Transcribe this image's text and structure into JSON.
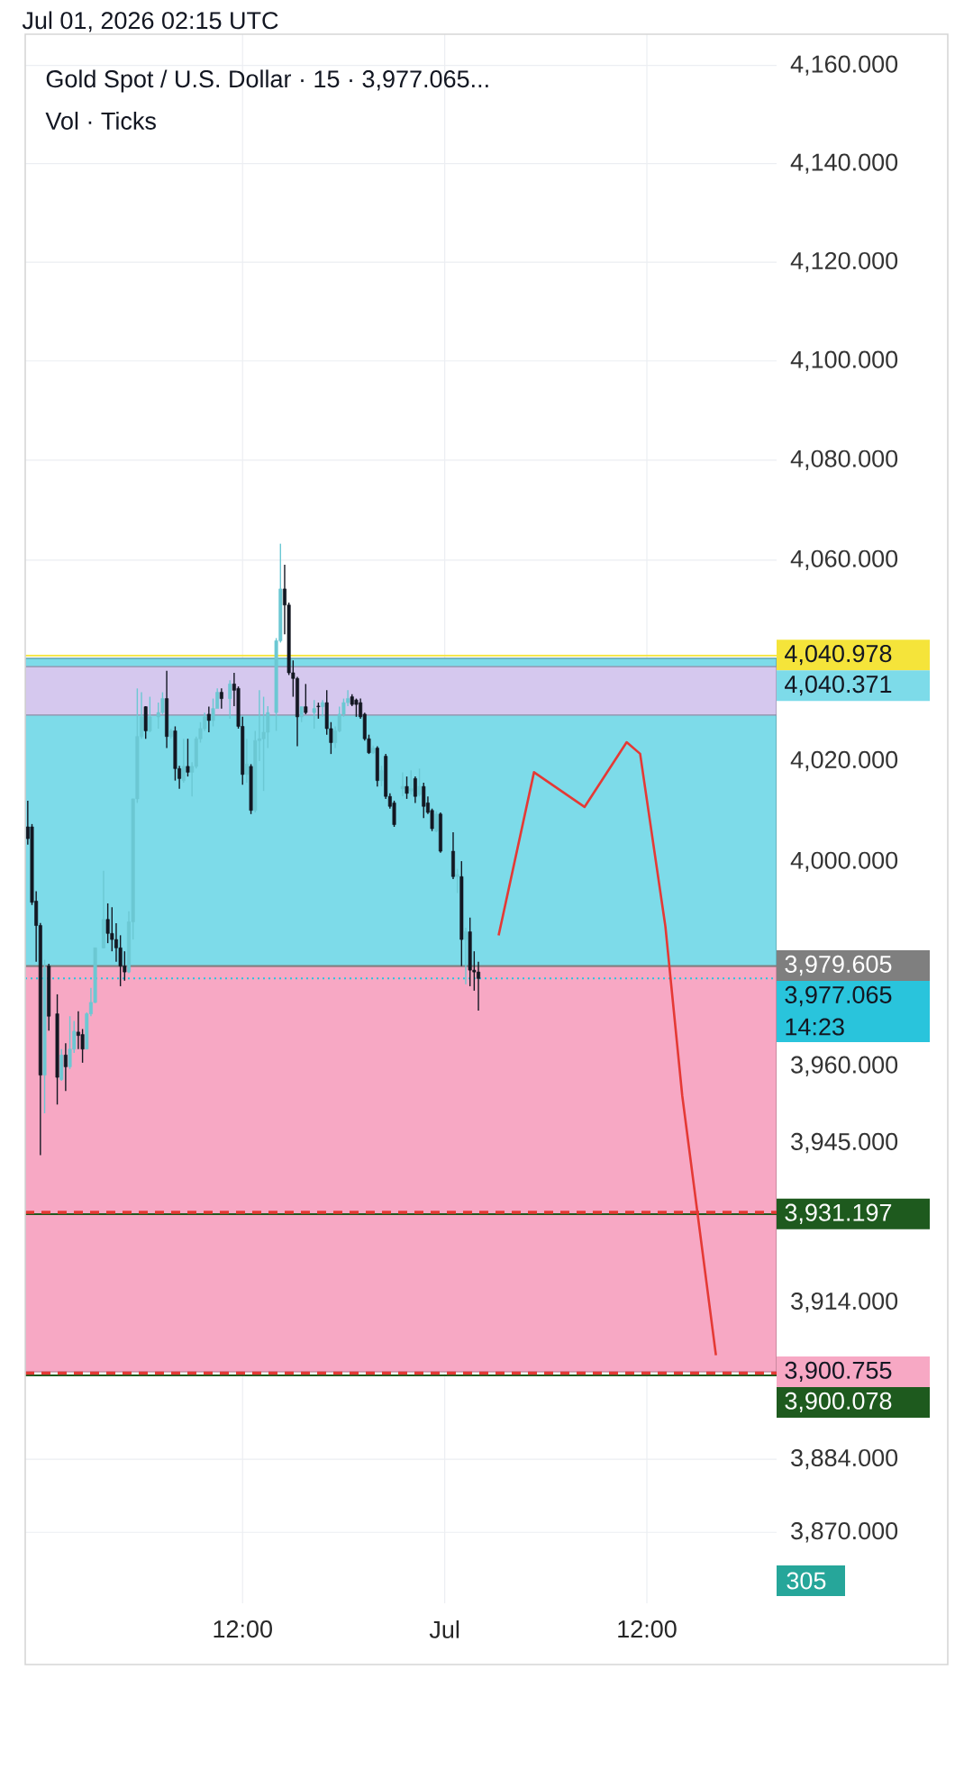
{
  "chart_data": {
    "type": "candlestick",
    "title": "Gold Spot / U.S. Dollar · 15 · 3,977.065...",
    "subtitle": "Vol · Ticks",
    "annotations": [
      "Jul 01, 2026 02:15 UTC",
      "14:23",
      "305"
    ],
    "xlim": [
      "2026-06-29T23:06",
      "2026-07-01T19:42"
    ],
    "ylim": [
      3856.5,
      4166.5
    ],
    "log": true,
    "grid": true,
    "xticks": [
      {
        "value": "2026-06-30T12:00",
        "label": "12:00"
      },
      {
        "value": "2026-07-01T00:00",
        "label": "Jul"
      },
      {
        "value": "2026-07-01T12:00",
        "label": "12:00"
      }
    ],
    "yticks": [
      {
        "value": 4160,
        "label": "4,160.000"
      },
      {
        "value": 4140,
        "label": "4,140.000"
      },
      {
        "value": 4120,
        "label": "4,120.000"
      },
      {
        "value": 4100,
        "label": "4,100.000"
      },
      {
        "value": 4080,
        "label": "4,080.000"
      },
      {
        "value": 4060,
        "label": "4,060.000"
      },
      {
        "value": 4040,
        "label": null
      },
      {
        "value": 4020,
        "label": "4,020.000"
      },
      {
        "value": 4000,
        "label": "4,000.000"
      },
      {
        "value": 3980,
        "label": null
      },
      {
        "value": 3960,
        "label": "3,960.000"
      },
      {
        "value": 3945,
        "label": "3,945.000"
      },
      {
        "value": 3914,
        "label": "3,914.000"
      },
      {
        "value": 3884,
        "label": "3,884.000"
      },
      {
        "value": 3870,
        "label": "3,870.000"
      }
    ],
    "x": [
      "2026-06-29T23:15",
      "2026-06-29T23:30",
      "2026-06-29T23:45",
      "2026-06-30T00:00",
      "2026-06-30T00:15",
      "2026-06-30T00:30",
      "2026-06-30T01:00",
      "2026-06-30T01:15",
      "2026-06-30T01:30",
      "2026-06-30T01:45",
      "2026-06-30T02:00",
      "2026-06-30T02:15",
      "2026-06-30T02:30",
      "2026-06-30T02:45",
      "2026-06-30T03:00",
      "2026-06-30T03:15",
      "2026-06-30T03:45",
      "2026-06-30T04:00",
      "2026-06-30T04:15",
      "2026-06-30T04:30",
      "2026-06-30T04:45",
      "2026-06-30T05:00",
      "2026-06-30T05:15",
      "2026-06-30T05:30",
      "2026-06-30T05:45",
      "2026-06-30T06:00",
      "2026-06-30T06:15",
      "2026-06-30T06:30",
      "2026-06-30T07:00",
      "2026-06-30T07:15",
      "2026-06-30T07:30",
      "2026-06-30T07:45",
      "2026-06-30T08:00",
      "2026-06-30T08:15",
      "2026-06-30T08:30",
      "2026-06-30T08:45",
      "2026-06-30T09:00",
      "2026-06-30T09:15",
      "2026-06-30T09:30",
      "2026-06-30T09:45",
      "2026-06-30T10:00",
      "2026-06-30T10:15",
      "2026-06-30T10:30",
      "2026-06-30T10:45",
      "2026-06-30T11:15",
      "2026-06-30T11:30",
      "2026-06-30T11:45",
      "2026-06-30T12:00",
      "2026-06-30T12:15",
      "2026-06-30T12:30",
      "2026-06-30T12:45",
      "2026-06-30T13:00",
      "2026-06-30T13:15",
      "2026-06-30T13:30",
      "2026-06-30T14:00",
      "2026-06-30T14:15",
      "2026-06-30T14:30",
      "2026-06-30T14:45",
      "2026-06-30T15:00",
      "2026-06-30T15:15",
      "2026-06-30T15:30",
      "2026-06-30T15:45",
      "2026-06-30T16:15",
      "2026-06-30T16:30",
      "2026-06-30T16:45",
      "2026-06-30T17:00",
      "2026-06-30T17:15",
      "2026-06-30T17:30",
      "2026-06-30T17:45",
      "2026-06-30T18:00",
      "2026-06-30T18:15",
      "2026-06-30T18:30",
      "2026-06-30T18:45",
      "2026-06-30T19:00",
      "2026-06-30T19:15",
      "2026-06-30T19:30",
      "2026-06-30T19:45",
      "2026-06-30T20:00",
      "2026-06-30T20:15",
      "2026-06-30T20:30",
      "2026-06-30T20:45",
      "2026-06-30T21:00",
      "2026-06-30T21:30",
      "2026-06-30T21:45",
      "2026-06-30T22:00",
      "2026-06-30T22:15",
      "2026-06-30T22:30",
      "2026-06-30T22:45",
      "2026-06-30T23:00",
      "2026-06-30T23:15",
      "2026-06-30T23:30",
      "2026-06-30T23:45",
      "2026-07-01T00:30",
      "2026-07-01T00:45",
      "2026-07-01T01:00",
      "2026-07-01T01:15",
      "2026-07-01T01:30",
      "2026-07-01T01:45",
      "2026-07-01T02:00"
    ],
    "ohlc": [
      [
        4007,
        4012.1,
        4003,
        4004.6
      ],
      [
        4007,
        4007.5,
        3991.5,
        3992
      ],
      [
        3992.3,
        3994.3,
        3980.4,
        3987.5
      ],
      [
        3987.5,
        3988,
        3942.7,
        3958.2
      ],
      [
        3958.2,
        3980.8,
        3950.8,
        3979.2
      ],
      [
        3979.6,
        3980,
        3966.9,
        3969.7
      ],
      [
        3970.1,
        3974,
        3952.4,
        3957.8
      ],
      [
        3957.4,
        3963.3,
        3957.1,
        3962.1
      ],
      [
        3962.1,
        3964.5,
        3955.1,
        3959.8
      ],
      [
        3959.8,
        3969.6,
        3959.4,
        3963.3
      ],
      [
        3963.3,
        3968.8,
        3962.5,
        3966.8
      ],
      [
        3966.6,
        3970.7,
        3963.3,
        3965.9
      ],
      [
        3966.1,
        3967.3,
        3960.6,
        3963.3
      ],
      [
        3963.3,
        3970.5,
        3963.3,
        3970.1
      ],
      [
        3970.1,
        3975.3,
        3969.7,
        3972.5
      ],
      [
        3972.5,
        3983.2,
        3972.3,
        3983.2
      ],
      [
        3983.2,
        3998.3,
        3983,
        3988.7
      ],
      [
        3988.7,
        3991.9,
        3984,
        3986
      ],
      [
        3986,
        3991.1,
        3982.4,
        3984.8
      ],
      [
        3984.8,
        3987.9,
        3980.4,
        3983.2
      ],
      [
        3983.2,
        3985.6,
        3975.6,
        3979.6
      ],
      [
        3979.6,
        3982.4,
        3976.8,
        3978.4
      ],
      [
        3978.4,
        3990.3,
        3978.2,
        3988.3
      ],
      [
        3988.3,
        4012.5,
        3984.8,
        4012.5
      ],
      [
        4012.5,
        4034.4,
        4011.7,
        4024.8
      ],
      [
        4024.8,
        4033.6,
        4024.4,
        4028.8
      ],
      [
        4030,
        4030.8,
        4024.4,
        4026
      ],
      [
        4026,
        4032.8,
        4025.6,
        4028.8
      ],
      [
        4028.8,
        4031.6,
        4026.4,
        4029.6
      ],
      [
        4029.6,
        4033.6,
        4029.2,
        4032.4
      ],
      [
        4032.4,
        4037.9,
        4022.5,
        4024.8
      ],
      [
        4024.8,
        4026.4,
        4024.4,
        4026
      ],
      [
        4026,
        4026.8,
        4016.1,
        4018.5
      ],
      [
        4018.5,
        4019,
        4014.5,
        4016.5
      ],
      [
        4016.1,
        4024.4,
        4015.7,
        4018.9
      ],
      [
        4018.9,
        4024.4,
        4016.9,
        4017.7
      ],
      [
        4017.7,
        4019.7,
        4012.9,
        4018.9
      ],
      [
        4018.9,
        4024.8,
        4018.5,
        4024.4
      ],
      [
        4024.4,
        4027.6,
        4023.6,
        4026.4
      ],
      [
        4026.4,
        4029.6,
        4026,
        4028.8
      ],
      [
        4029.2,
        4030,
        4025.6,
        4028
      ],
      [
        4028,
        4032.4,
        4026.8,
        4030.4
      ],
      [
        4030.4,
        4034.4,
        4030,
        4033.6
      ],
      [
        4033.6,
        4034.4,
        4030.4,
        4032.4
      ],
      [
        4032.4,
        4036,
        4028.4,
        4035.2
      ],
      [
        4035.2,
        4037.5,
        4030.8,
        4034
      ],
      [
        4034.4,
        4034.8,
        4026.4,
        4026.8
      ],
      [
        4026.8,
        4028.8,
        4015.3,
        4017.3
      ],
      [
        4017.3,
        4024.4,
        4015.7,
        4019.3
      ],
      [
        4018.9,
        4019.3,
        4009.4,
        4010.2
      ],
      [
        4010.2,
        4026,
        4009.8,
        4024
      ],
      [
        4024,
        4034,
        4020,
        4024.4
      ],
      [
        4024.4,
        4032.8,
        4014.1,
        4025.6
      ],
      [
        4025.6,
        4030.8,
        4022.5,
        4029.6
      ],
      [
        4029.6,
        4044.3,
        4026,
        4043.9
      ],
      [
        4043.9,
        4063.3,
        4043.5,
        4054.2
      ],
      [
        4054.2,
        4059,
        4045.1,
        4051
      ],
      [
        4051,
        4051.4,
        4037.1,
        4037.5
      ],
      [
        4037.5,
        4039.9,
        4032.8,
        4036.3
      ],
      [
        4036.3,
        4036.7,
        4022.9,
        4028.8
      ],
      [
        4028.8,
        4030,
        4027.6,
        4030
      ],
      [
        4030,
        4035.2,
        4029.2,
        4029.6
      ],
      [
        4029.6,
        4032,
        4026.4,
        4030.4
      ],
      [
        4030.8,
        4031.6,
        4028.4,
        4030
      ],
      [
        4030,
        4032,
        4028.8,
        4031.6
      ],
      [
        4031.6,
        4034,
        4025.2,
        4026.4
      ],
      [
        4026.4,
        4027.6,
        4021.3,
        4023.6
      ],
      [
        4023.6,
        4026.8,
        4022.5,
        4026
      ],
      [
        4026,
        4030,
        4025.6,
        4029.2
      ],
      [
        4029.2,
        4032.4,
        4028.8,
        4031.6
      ],
      [
        4031.6,
        4034,
        4030.8,
        4032.4
      ],
      [
        4032.8,
        4033.2,
        4030.8,
        4031.2
      ],
      [
        4032,
        4032.4,
        4028.8,
        4031.2
      ],
      [
        4031.6,
        4032.4,
        4028.4,
        4028.8
      ],
      [
        4029.2,
        4029.6,
        4024,
        4024.4
      ],
      [
        4024.4,
        4025.2,
        4021.3,
        4021.7
      ],
      [
        4021.7,
        4023,
        4021.3,
        4022.5
      ],
      [
        4022.5,
        4022.9,
        4014.9,
        4016.1
      ],
      [
        4016.1,
        4019,
        4015,
        4018.1
      ],
      [
        4020.9,
        4021.3,
        4012.5,
        4012.9
      ],
      [
        4012.9,
        4013.7,
        4010.6,
        4011
      ],
      [
        4011.7,
        4012.1,
        4007,
        4007.4
      ],
      [
        4014.5,
        4017.7,
        4013,
        4014.9
      ],
      [
        4014.9,
        4016.9,
        4012.5,
        4013.7
      ],
      [
        4014.1,
        4018.1,
        4013.3,
        4014.5
      ],
      [
        4016.5,
        4016.9,
        4011.7,
        4012.9
      ],
      [
        4013.3,
        4018.5,
        4012.9,
        4014.9
      ],
      [
        4014.9,
        4015.7,
        4008.6,
        4011
      ],
      [
        4011.7,
        4012.9,
        4009.4,
        4009.8
      ],
      [
        4010.2,
        4010.6,
        4006.2,
        4006.6
      ],
      [
        4006.2,
        4010,
        4005.8,
        4009.4
      ],
      [
        4009.4,
        4009.8,
        4001.8,
        4002.2
      ],
      [
        4002.2,
        4005.8,
        3996.7,
        3997.1
      ],
      [
        3997.1,
        3998.7,
        3993.9,
        3997.5
      ],
      [
        3997.1,
        4000.2,
        3979.6,
        3984.8
      ],
      [
        3984.8,
        3987.1,
        3976,
        3986.3
      ],
      [
        3986.3,
        3989.1,
        3975.6,
        3978.8
      ],
      [
        3978.8,
        3982.4,
        3974.8,
        3978.4
      ],
      [
        3978.4,
        3980.4,
        3970.9,
        3977.065
      ]
    ],
    "colors": [
      "#131722",
      "#131722",
      "#131722",
      "#131722",
      "#6bc8d3",
      "#131722",
      "#131722",
      "#6bc8d3",
      "#131722",
      "#6bc8d3",
      "#6bc8d3",
      "#131722",
      "#131722",
      "#6bc8d3",
      "#6bc8d3",
      "#6bc8d3",
      "#6bc8d3",
      "#131722",
      "#131722",
      "#131722",
      "#131722",
      "#131722",
      "#6bc8d3",
      "#6bc8d3",
      "#6bc8d3",
      "#6bc8d3",
      "#131722",
      "#6bc8d3",
      "#6bc8d3",
      "#6bc8d3",
      "#131722",
      "#6bc8d3",
      "#131722",
      "#131722",
      "#6bc8d3",
      "#131722",
      "#6bc8d3",
      "#6bc8d3",
      "#6bc8d3",
      "#6bc8d3",
      "#131722",
      "#6bc8d3",
      "#6bc8d3",
      "#131722",
      "#6bc8d3",
      "#131722",
      "#131722",
      "#131722",
      "#6bc8d3",
      "#131722",
      "#6bc8d3",
      "#6bc8d3",
      "#6bc8d3",
      "#6bc8d3",
      "#6bc8d3",
      "#6bc8d3",
      "#131722",
      "#131722",
      "#131722",
      "#131722",
      "#6bc8d3",
      "#131722",
      "#6bc8d3",
      "#131722",
      "#6bc8d3",
      "#131722",
      "#131722",
      "#6bc8d3",
      "#6bc8d3",
      "#6bc8d3",
      "#6bc8d3",
      "#131722",
      "#131722",
      "#131722",
      "#131722",
      "#131722",
      "#6bc8d3",
      "#131722",
      "#6bc8d3",
      "#131722",
      "#131722",
      "#131722",
      "#6bc8d3",
      "#131722",
      "#6bc8d3",
      "#131722",
      "#6bc8d3",
      "#131722",
      "#131722",
      "#131722",
      "#6bc8d3",
      "#131722",
      "#131722",
      "#6bc8d3",
      "#131722",
      "#6bc8d3",
      "#131722",
      "#131722",
      "#131722"
    ],
    "series": [
      {
        "type": "line",
        "color": "#e53935",
        "x": [
          "2026-07-01T03:12",
          "2026-07-01T05:18",
          "2026-07-01T08:18",
          "2026-07-01T10:48",
          "2026-07-01T11:36",
          "2026-07-01T13:06",
          "2026-07-01T14:06",
          "2026-07-01T16:06"
        ],
        "values": [
          3985.5,
          4017.8,
          4010.9,
          4023.7,
          4021.4,
          3987.3,
          3954.2,
          3904
        ]
      }
    ],
    "bands": [
      {
        "axis": "y",
        "from": 3979.605,
        "to": 4040.371,
        "label": "4,040.371",
        "color": "#7ddbe9"
      },
      {
        "axis": "y",
        "from": 3900.755,
        "to": 3979.605,
        "label": "3,900.755",
        "color": "#f7a8c4"
      },
      {
        "axis": "y",
        "from": 4029,
        "to": 4038.7,
        "color": "#d5c8ee"
      }
    ],
    "ref_lines": [
      {
        "axis": "y",
        "value": 4040.978,
        "label": "4,040.978",
        "color": "#f5e43a",
        "line_style": "solid"
      },
      {
        "axis": "y",
        "value": 3979.605,
        "label": "3,979.605",
        "color": "#7f7f7f",
        "line_style": "solid"
      },
      {
        "axis": "y",
        "value": 3977.065,
        "label": "3,977.065",
        "color": "#29c4dc",
        "line_style": "dotted"
      },
      {
        "axis": "y",
        "value": 3931.197,
        "label": "3,931.197",
        "color": "#1e5a1e",
        "line_style": "solid"
      },
      {
        "axis": "y",
        "value": 3900.078,
        "label": "3,900.078",
        "color": "#1e5a1e",
        "line_style": "solid"
      },
      {
        "axis": "y",
        "value": 3931.6,
        "color": "#e53935",
        "line_style": "dashed"
      },
      {
        "axis": "y",
        "value": 3900.5,
        "color": "#e53935",
        "line_style": "dashed"
      }
    ]
  }
}
